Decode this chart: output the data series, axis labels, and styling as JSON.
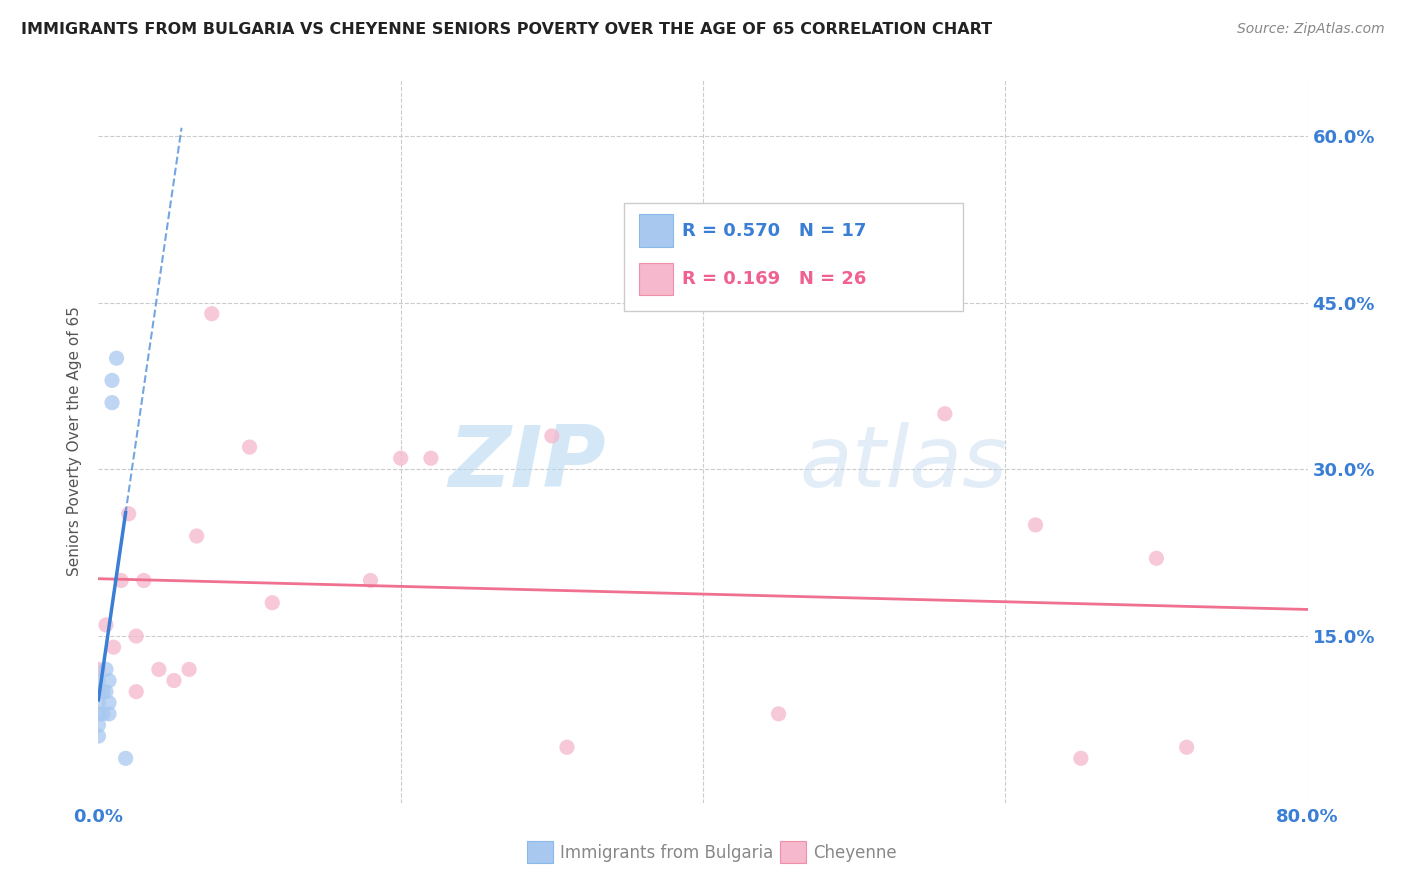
{
  "title": "IMMIGRANTS FROM BULGARIA VS CHEYENNE SENIORS POVERTY OVER THE AGE OF 65 CORRELATION CHART",
  "source": "Source: ZipAtlas.com",
  "ylabel": "Seniors Poverty Over the Age of 65",
  "xlim": [
    0.0,
    0.8
  ],
  "ylim": [
    0.0,
    0.65
  ],
  "legend1_label": "Immigrants from Bulgaria",
  "legend2_label": "Cheyenne",
  "R_bulgaria": 0.57,
  "N_bulgaria": 17,
  "R_cheyenne": 0.169,
  "N_cheyenne": 26,
  "color_bulgaria": "#a8c8f0",
  "color_cheyenne": "#f5b8cc",
  "color_line_bulgaria": "#3a7fd5",
  "color_line_cheyenne": "#f07090",
  "watermark_zip": "ZIP",
  "watermark_atlas": "atlas",
  "bulgaria_x": [
    0.0,
    0.0,
    0.0,
    0.0,
    0.0,
    0.0,
    0.003,
    0.003,
    0.005,
    0.005,
    0.007,
    0.007,
    0.007,
    0.009,
    0.009,
    0.012,
    0.018
  ],
  "bulgaria_y": [
    0.06,
    0.07,
    0.08,
    0.09,
    0.1,
    0.11,
    0.08,
    0.1,
    0.1,
    0.12,
    0.08,
    0.09,
    0.11,
    0.36,
    0.38,
    0.4,
    0.04
  ],
  "cheyenne_x": [
    0.0,
    0.005,
    0.01,
    0.015,
    0.02,
    0.025,
    0.025,
    0.03,
    0.04,
    0.05,
    0.06,
    0.065,
    0.075,
    0.1,
    0.115,
    0.18,
    0.2,
    0.22,
    0.3,
    0.31,
    0.45,
    0.56,
    0.62,
    0.65,
    0.7,
    0.72
  ],
  "cheyenne_y": [
    0.12,
    0.16,
    0.14,
    0.2,
    0.26,
    0.1,
    0.15,
    0.2,
    0.12,
    0.11,
    0.12,
    0.24,
    0.44,
    0.32,
    0.18,
    0.2,
    0.31,
    0.31,
    0.33,
    0.05,
    0.08,
    0.35,
    0.25,
    0.04,
    0.22,
    0.05
  ]
}
